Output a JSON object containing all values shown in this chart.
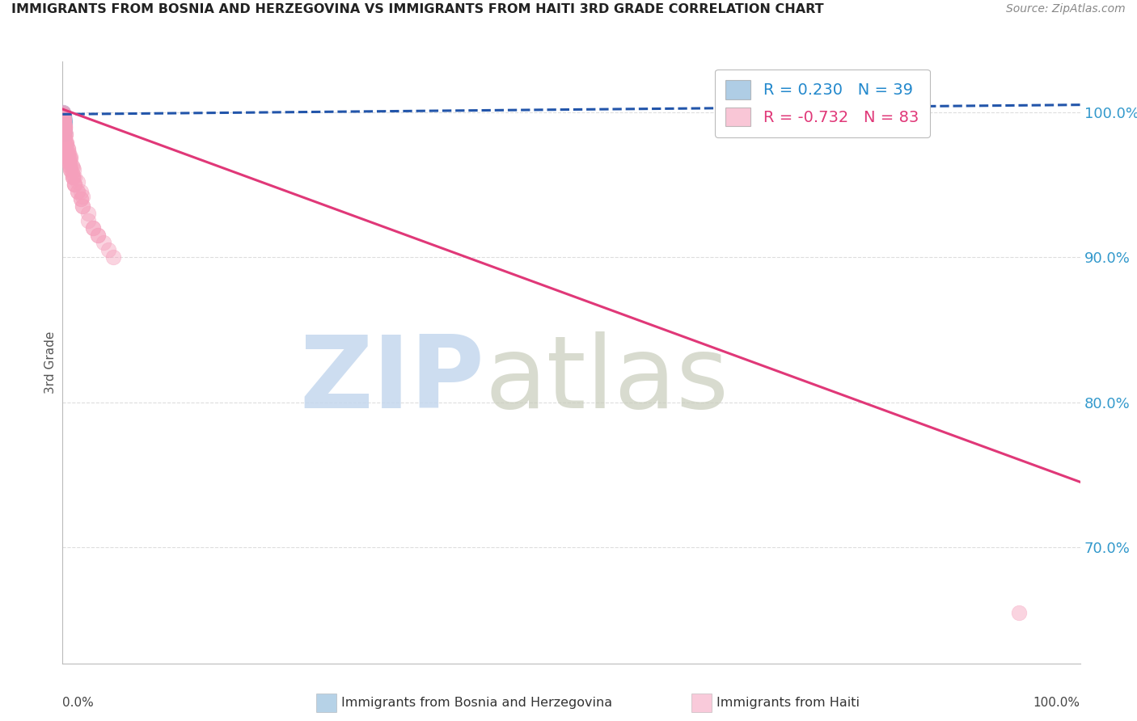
{
  "title": "IMMIGRANTS FROM BOSNIA AND HERZEGOVINA VS IMMIGRANTS FROM HAITI 3RD GRADE CORRELATION CHART",
  "source": "Source: ZipAtlas.com",
  "ylabel": "3rd Grade",
  "yticks": [
    70.0,
    80.0,
    90.0,
    100.0
  ],
  "ytick_labels": [
    "70.0%",
    "80.0%",
    "90.0%",
    "100.0%"
  ],
  "xlim": [
    0.0,
    100.0
  ],
  "ylim": [
    62.0,
    103.5
  ],
  "bosnia_R": 0.23,
  "bosnia_N": 39,
  "haiti_R": -0.732,
  "haiti_N": 83,
  "bosnia_color": "#7BADD4",
  "haiti_color": "#F5A0BC",
  "bosnia_line_color": "#2255AA",
  "haiti_line_color": "#E03878",
  "bosnia_text_color": "#2288CC",
  "haiti_text_color": "#E03878",
  "grid_color": "#DDDDDD",
  "bosnia_line_x0": 0.0,
  "bosnia_line_y0": 99.85,
  "bosnia_line_x1": 100.0,
  "bosnia_line_y1": 100.5,
  "haiti_line_x0": 0.0,
  "haiti_line_y0": 100.2,
  "haiti_line_x1": 100.0,
  "haiti_line_y1": 74.5,
  "bosnia_scatter_x": [
    0.05,
    0.08,
    0.1,
    0.12,
    0.05,
    0.08,
    0.1,
    0.07,
    0.09,
    0.06,
    0.08,
    0.1,
    0.07,
    0.09,
    0.12,
    0.06,
    0.1,
    0.08,
    0.12,
    0.09,
    0.07,
    0.11,
    0.08,
    0.1,
    0.06,
    0.09,
    0.07,
    0.11,
    0.08,
    0.13,
    0.15,
    0.12,
    0.2,
    0.18,
    0.14,
    0.22,
    0.16,
    0.14,
    0.25
  ],
  "bosnia_scatter_y": [
    100.0,
    99.8,
    99.5,
    99.7,
    99.3,
    99.6,
    99.4,
    99.9,
    99.2,
    99.8,
    99.5,
    99.7,
    99.3,
    99.6,
    99.4,
    99.8,
    99.5,
    99.7,
    99.3,
    99.6,
    99.4,
    99.8,
    99.2,
    99.5,
    99.7,
    99.3,
    99.6,
    99.4,
    99.8,
    98.8,
    98.5,
    99.0,
    99.2,
    98.7,
    98.9,
    99.5,
    98.6,
    98.8,
    99.3
  ],
  "haiti_scatter_x": [
    0.05,
    0.08,
    0.12,
    0.06,
    0.1,
    0.15,
    0.08,
    0.2,
    0.12,
    0.18,
    0.1,
    0.25,
    0.15,
    0.08,
    0.06,
    0.3,
    0.2,
    0.12,
    0.1,
    0.4,
    0.25,
    0.15,
    0.08,
    0.5,
    0.3,
    0.2,
    0.1,
    0.6,
    0.4,
    0.25,
    0.12,
    0.7,
    0.5,
    0.3,
    0.8,
    0.6,
    0.4,
    0.9,
    0.7,
    0.5,
    1.0,
    0.8,
    0.6,
    1.2,
    1.0,
    0.8,
    1.5,
    1.2,
    1.0,
    1.8,
    1.5,
    1.2,
    2.0,
    1.8,
    2.5,
    2.0,
    3.0,
    2.5,
    3.5,
    3.0,
    4.0,
    3.5,
    5.0,
    4.5,
    0.15,
    0.2,
    0.3,
    0.5,
    0.8,
    1.0,
    0.6,
    1.5,
    2.0,
    0.4,
    0.7,
    0.9,
    1.2,
    1.8,
    0.35,
    0.55,
    0.75,
    1.1,
    94.0
  ],
  "haiti_scatter_y": [
    100.0,
    99.8,
    99.5,
    99.9,
    99.6,
    99.3,
    99.7,
    99.0,
    99.4,
    99.1,
    99.5,
    98.8,
    99.2,
    99.6,
    99.8,
    98.5,
    98.9,
    99.3,
    99.5,
    97.8,
    98.3,
    98.7,
    99.2,
    97.2,
    97.8,
    98.2,
    98.9,
    96.8,
    97.3,
    97.8,
    98.5,
    96.5,
    97.0,
    97.5,
    96.2,
    96.7,
    97.2,
    95.8,
    96.3,
    96.8,
    95.5,
    96.0,
    96.5,
    95.0,
    95.5,
    96.0,
    94.5,
    95.0,
    95.5,
    94.0,
    94.5,
    95.0,
    93.5,
    94.0,
    93.0,
    93.5,
    92.0,
    92.5,
    91.5,
    92.0,
    91.0,
    91.5,
    90.0,
    90.5,
    99.2,
    99.0,
    98.5,
    97.5,
    96.8,
    96.2,
    97.2,
    95.2,
    94.2,
    97.8,
    96.8,
    96.3,
    95.5,
    94.5,
    97.9,
    97.5,
    96.9,
    96.0,
    65.5
  ]
}
